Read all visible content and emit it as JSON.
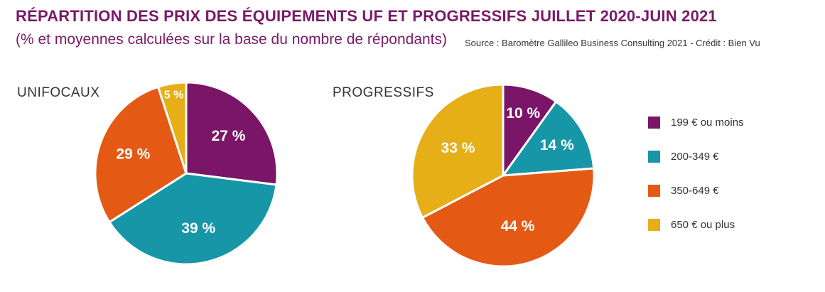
{
  "title": "RÉPARTITION DES PRIX DES ÉQUIPEMENTS UF ET PROGRESSIFS JUILLET 2020-JUIN 2021",
  "subtitle": "(% et moyennes calculées sur la base du nombre de répondants)",
  "source": "Source : Baromètre Gallileo Business Consulting 2021 - Crédit : Bien Vu",
  "legend": [
    {
      "label": "199 € ou moins",
      "color": "#7a1568"
    },
    {
      "label": "200-349 €",
      "color": "#1796a8"
    },
    {
      "label": "350-649 €",
      "color": "#e45a14"
    },
    {
      "label": "650 € ou plus",
      "color": "#e6ae17"
    }
  ],
  "chart_data": [
    {
      "type": "pie",
      "title": "UNIFOCAUX",
      "categories": [
        "199 € ou moins",
        "200-349 €",
        "350-649 €",
        "650 € ou plus"
      ],
      "values": [
        27,
        39,
        29,
        5
      ],
      "labels": [
        "27 %",
        "39 %",
        "29 %",
        "5 %"
      ],
      "colors": [
        "#7a1568",
        "#1796a8",
        "#e45a14",
        "#e6ae17"
      ]
    },
    {
      "type": "pie",
      "title": "PROGRESSIFS",
      "categories": [
        "199 € ou moins",
        "200-349 €",
        "350-649 €",
        "650 € ou plus"
      ],
      "values": [
        10,
        14,
        44,
        33
      ],
      "labels": [
        "10 %",
        "14 %",
        "44 %",
        "33 %"
      ],
      "colors": [
        "#7a1568",
        "#1796a8",
        "#e45a14",
        "#e6ae17"
      ]
    }
  ]
}
